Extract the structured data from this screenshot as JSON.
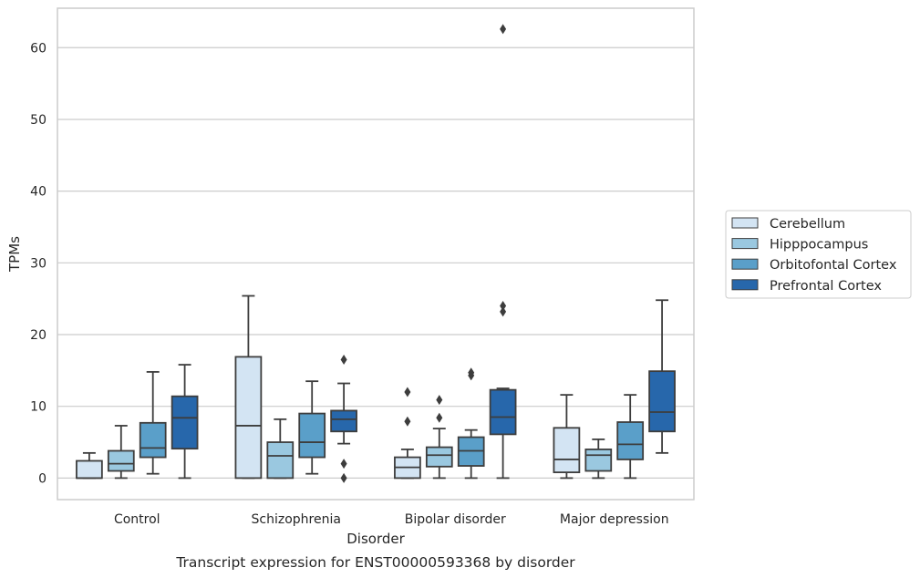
{
  "chart_data": {
    "type": "boxplot",
    "xlabel": "Disorder",
    "ylabel": "TPMs",
    "caption": "Transcript expression for ENST00000593368 by disorder",
    "ylim": [
      -3,
      65.5
    ],
    "yticks": [
      0,
      10,
      20,
      30,
      40,
      50,
      60
    ],
    "grid": "horizontal",
    "legend_position": "right",
    "categories": [
      "Control",
      "Schizophrenia",
      "Bipolar disorder",
      "Major depression"
    ],
    "series": [
      {
        "name": "Cerebellum",
        "color": "#d3e4f3",
        "boxes": [
          {
            "whislo": 0,
            "q1": 0,
            "med": 0,
            "q3": 2.4,
            "whishi": 3.5,
            "fliers": []
          },
          {
            "whislo": 0,
            "q1": 0,
            "med": 7.3,
            "q3": 16.9,
            "whishi": 25.4,
            "fliers": []
          },
          {
            "whislo": 0,
            "q1": 0,
            "med": 1.5,
            "q3": 2.9,
            "whishi": 4.0,
            "fliers": [
              7.9,
              12.0
            ]
          },
          {
            "whislo": 0,
            "q1": 0.8,
            "med": 2.6,
            "q3": 7.0,
            "whishi": 11.6,
            "fliers": []
          }
        ]
      },
      {
        "name": "Hipppocampus",
        "color": "#9ac8e0",
        "boxes": [
          {
            "whislo": 0,
            "q1": 1.0,
            "med": 2.0,
            "q3": 3.8,
            "whishi": 7.3,
            "fliers": []
          },
          {
            "whislo": 0,
            "q1": 0,
            "med": 3.1,
            "q3": 5.0,
            "whishi": 8.2,
            "fliers": []
          },
          {
            "whislo": 0,
            "q1": 1.6,
            "med": 3.2,
            "q3": 4.3,
            "whishi": 6.9,
            "fliers": [
              8.4,
              10.9
            ]
          },
          {
            "whislo": 0,
            "q1": 1.0,
            "med": 3.2,
            "q3": 4.0,
            "whishi": 5.4,
            "fliers": []
          }
        ]
      },
      {
        "name": "Orbitofontal Cortex",
        "color": "#5a9fc9",
        "boxes": [
          {
            "whislo": 0.6,
            "q1": 2.9,
            "med": 4.2,
            "q3": 7.7,
            "whishi": 14.8,
            "fliers": []
          },
          {
            "whislo": 0.6,
            "q1": 2.9,
            "med": 5.0,
            "q3": 9.0,
            "whishi": 13.5,
            "fliers": []
          },
          {
            "whislo": 0,
            "q1": 1.7,
            "med": 3.8,
            "q3": 5.7,
            "whishi": 6.7,
            "fliers": [
              14.3,
              14.7
            ]
          },
          {
            "whislo": 0,
            "q1": 2.6,
            "med": 4.7,
            "q3": 7.8,
            "whishi": 11.6,
            "fliers": []
          }
        ]
      },
      {
        "name": "Prefrontal Cortex",
        "color": "#2767ab",
        "boxes": [
          {
            "whislo": 0,
            "q1": 4.1,
            "med": 8.4,
            "q3": 11.4,
            "whishi": 15.8,
            "fliers": []
          },
          {
            "whislo": 4.8,
            "q1": 6.5,
            "med": 8.2,
            "q3": 9.4,
            "whishi": 13.2,
            "fliers": [
              0,
              2.0,
              16.5
            ]
          },
          {
            "whislo": 0,
            "q1": 6.1,
            "med": 8.5,
            "q3": 12.3,
            "whishi": 12.5,
            "fliers": [
              23.2,
              24.0,
              62.6
            ]
          },
          {
            "whislo": 3.5,
            "q1": 6.5,
            "med": 9.2,
            "q3": 14.9,
            "whishi": 24.8,
            "fliers": []
          }
        ]
      }
    ]
  }
}
